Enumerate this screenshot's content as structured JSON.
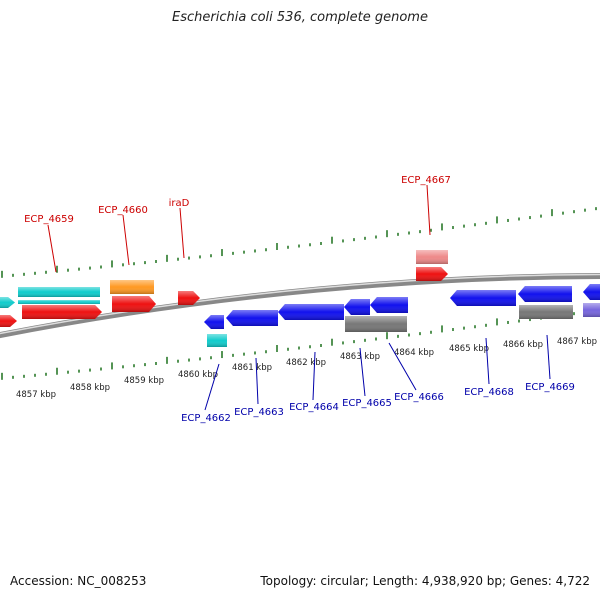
{
  "title": "Escherichia coli 536, complete genome",
  "footer": {
    "accession": "Accession: NC_008253",
    "summary": "Topology: circular; Length: 4,938,920 bp; Genes: 4,722"
  },
  "colors": {
    "upper_label": "#cc0000",
    "lower_label": "#0000aa",
    "tick": "#2a7a2a",
    "backbone": "#888888",
    "red": "#ee1111",
    "cyan": "#11cccc",
    "orange": "#ff9922",
    "pink": "#ee8888",
    "blue": "#1111ee",
    "gray": "#777777",
    "violet": "#7766dd"
  },
  "kbp_labels": [
    "4857 kbp",
    "4858 kbp",
    "4859 kbp",
    "4860 kbp",
    "4861 kbp",
    "4862 kbp",
    "4863 kbp",
    "4864 kbp",
    "4865 kbp",
    "4866 kbp",
    "4867 kbp"
  ],
  "upper_gene_labels": [
    "ECP_4659",
    "ECP_4660",
    "iraD",
    "ECP_4667"
  ],
  "lower_gene_labels": [
    "ECP_4662",
    "ECP_4663",
    "ECP_4664",
    "ECP_4665",
    "ECP_4666",
    "ECP_4668",
    "ECP_4669"
  ]
}
